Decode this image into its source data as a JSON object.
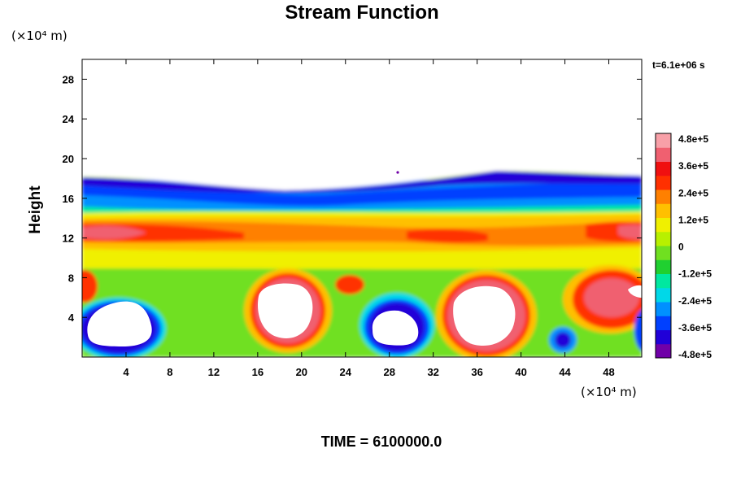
{
  "chart_data": {
    "type": "heatmap",
    "title": "Stream Function",
    "ylabel": "Height",
    "x_unit": "(×10⁴ m)",
    "y_unit": "(×10⁴ m)",
    "time_label": "t=6.1e+06 s",
    "footer": "TIME = 6100000.0",
    "xlim": [
      0,
      51
    ],
    "ylim": [
      0,
      30
    ],
    "x_ticks": [
      "4",
      "8",
      "12",
      "16",
      "20",
      "24",
      "28",
      "32",
      "36",
      "40",
      "44",
      "48"
    ],
    "y_ticks": [
      "4",
      "8",
      "12",
      "16",
      "20",
      "24",
      "28"
    ],
    "colorbar": {
      "range": [
        -480000,
        480000
      ],
      "tick_labels": [
        "4.8e+5",
        "3.6e+5",
        "2.4e+5",
        "1.2e+5",
        "0",
        "-1.2e+5",
        "-2.4e+5",
        "-3.6e+5",
        "-4.8e+5"
      ],
      "colors": [
        "#7000a8",
        "#2000d8",
        "#0040ff",
        "#0090ff",
        "#00d8e8",
        "#00e8a0",
        "#20d030",
        "#70e020",
        "#b8f000",
        "#f0f000",
        "#ffc000",
        "#ff8000",
        "#ff3000",
        "#f01010",
        "#f06070",
        "#f8a0a8"
      ]
    },
    "field_features": {
      "top_boundary_height": 18,
      "positive_band_height": 12.5,
      "negative_band_height": 16,
      "saturated_positive_cells_x": [
        18,
        36
      ],
      "saturated_negative_cells_x": [
        4,
        28
      ],
      "small_negative_cell_x": 43.5
    }
  }
}
